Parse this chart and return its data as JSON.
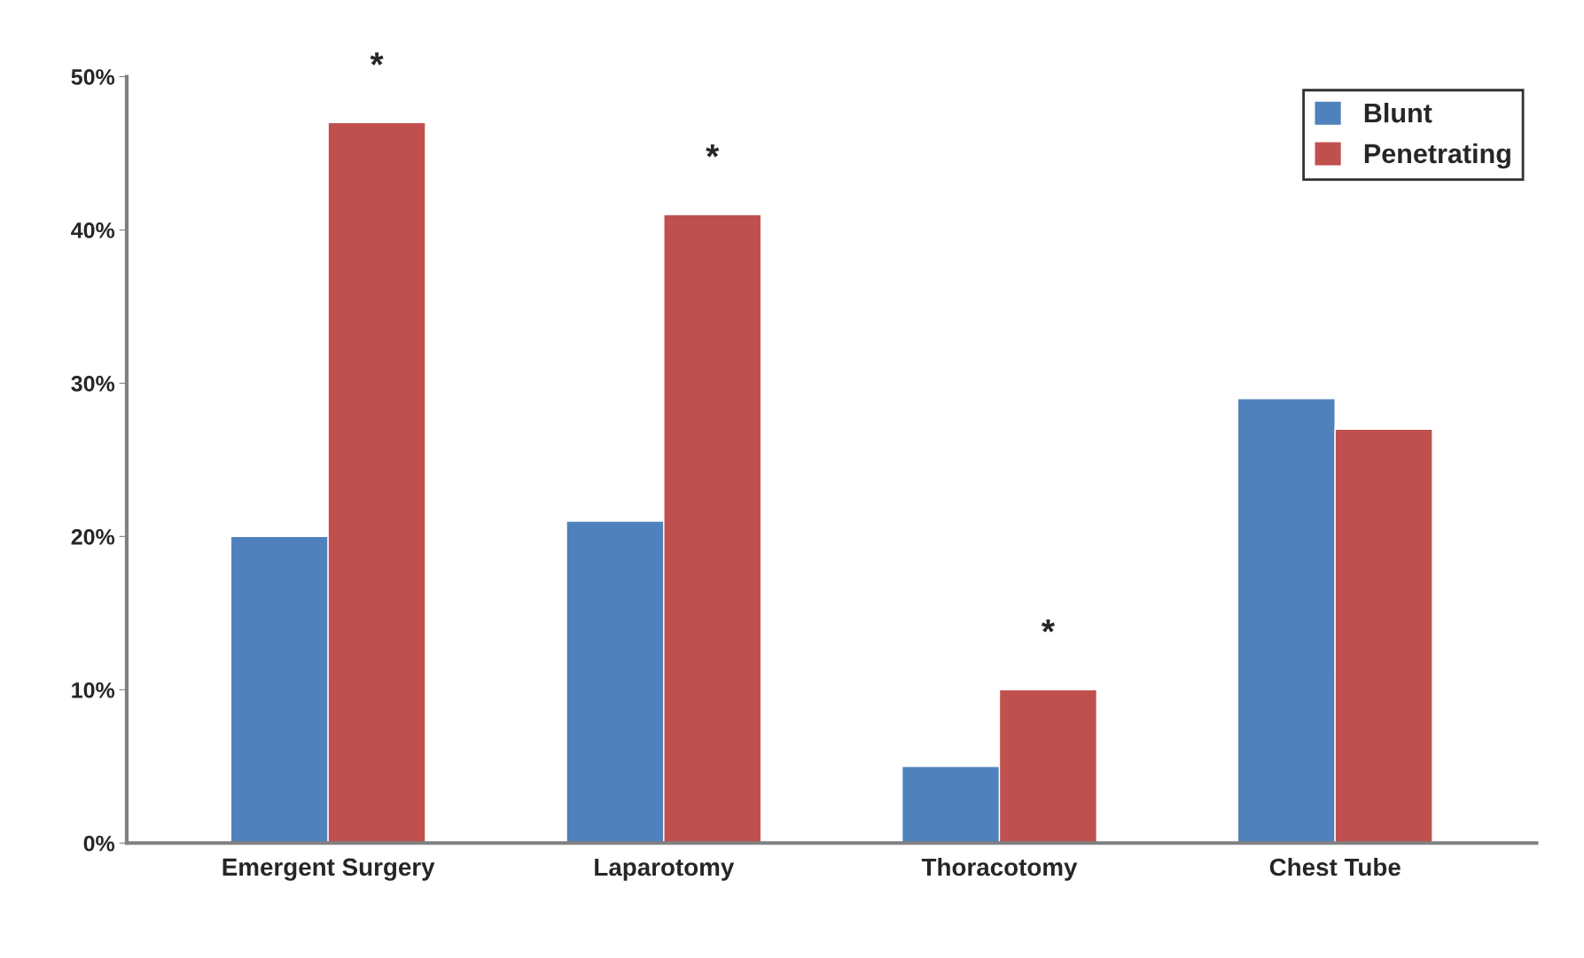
{
  "chart_data": {
    "type": "bar",
    "categories": [
      "Emergent Surgery",
      "Laparotomy",
      "Thoracotomy",
      "Chest Tube"
    ],
    "series": [
      {
        "name": "Blunt",
        "color": "#4f81bd",
        "values": [
          20,
          21,
          5,
          29
        ]
      },
      {
        "name": "Penetrating",
        "color": "#c0504d",
        "values": [
          47,
          41,
          10,
          27
        ]
      }
    ],
    "ylim": [
      0,
      50
    ],
    "yticks": [
      {
        "value": 0,
        "label": "0%"
      },
      {
        "value": 10,
        "label": "10%"
      },
      {
        "value": 20,
        "label": "20%"
      },
      {
        "value": 30,
        "label": "30%"
      },
      {
        "value": 40,
        "label": "40%"
      },
      {
        "value": 50,
        "label": "50%"
      }
    ],
    "annotations": [
      {
        "text": "*",
        "x": "Emergent Surgery",
        "y": 47
      },
      {
        "text": "*",
        "x": "Laparotomy",
        "y": 41
      },
      {
        "text": "*",
        "x": "Thoracotomy",
        "y": 10
      }
    ],
    "legend": "top right",
    "grid": false
  }
}
